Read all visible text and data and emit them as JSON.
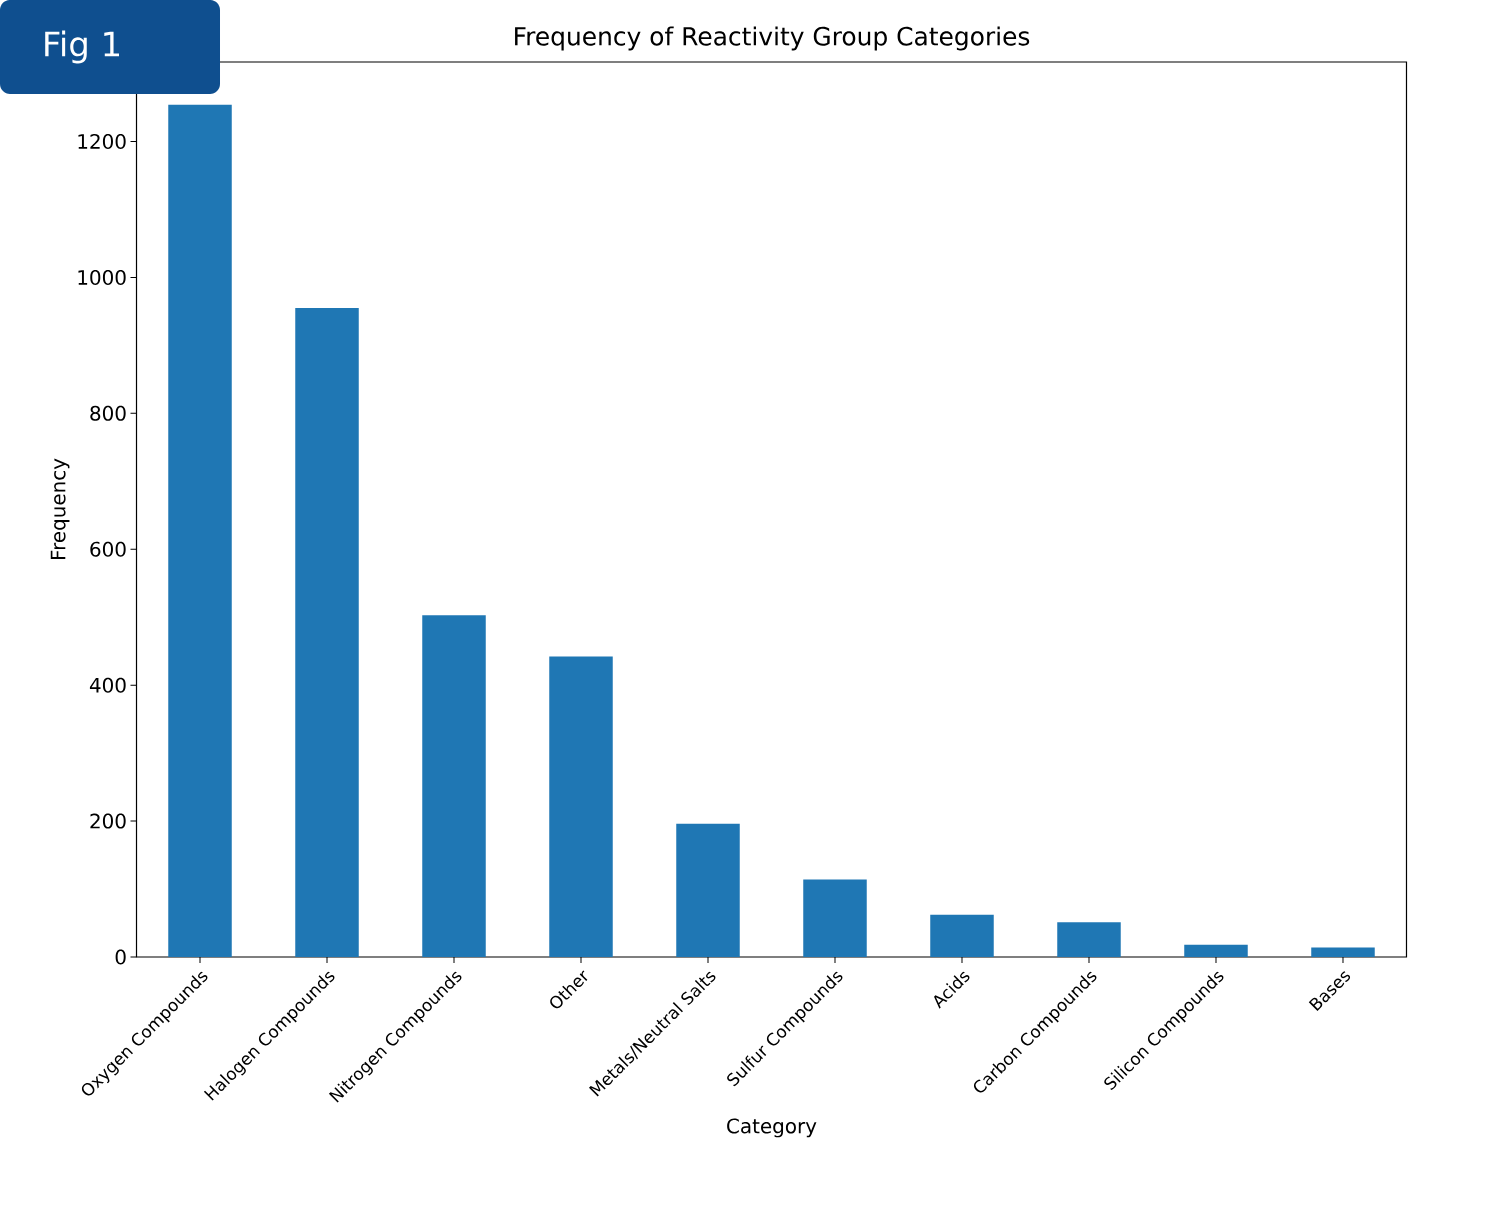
{
  "chart_data": {
    "type": "bar",
    "title": "Frequency of Reactivity Group Categories",
    "xlabel": "Category",
    "ylabel": "Frequency",
    "categories": [
      "Oxygen Compounds",
      "Halogen Compounds",
      "Nitrogen Compounds",
      "Other",
      "Metals/Neutral Salts",
      "Sulfur Compounds",
      "Acids",
      "Carbon Compounds",
      "Silicon Compounds",
      "Bases"
    ],
    "values": [
      1254,
      955,
      503,
      442,
      196,
      114,
      62,
      51,
      18,
      14
    ],
    "color": "#1f77b4",
    "ylim": [
      0,
      1317
    ],
    "yticks": [
      0,
      200,
      400,
      600,
      800,
      1000,
      1200
    ],
    "grid": false,
    "annotations": [
      "Fig 1"
    ]
  }
}
